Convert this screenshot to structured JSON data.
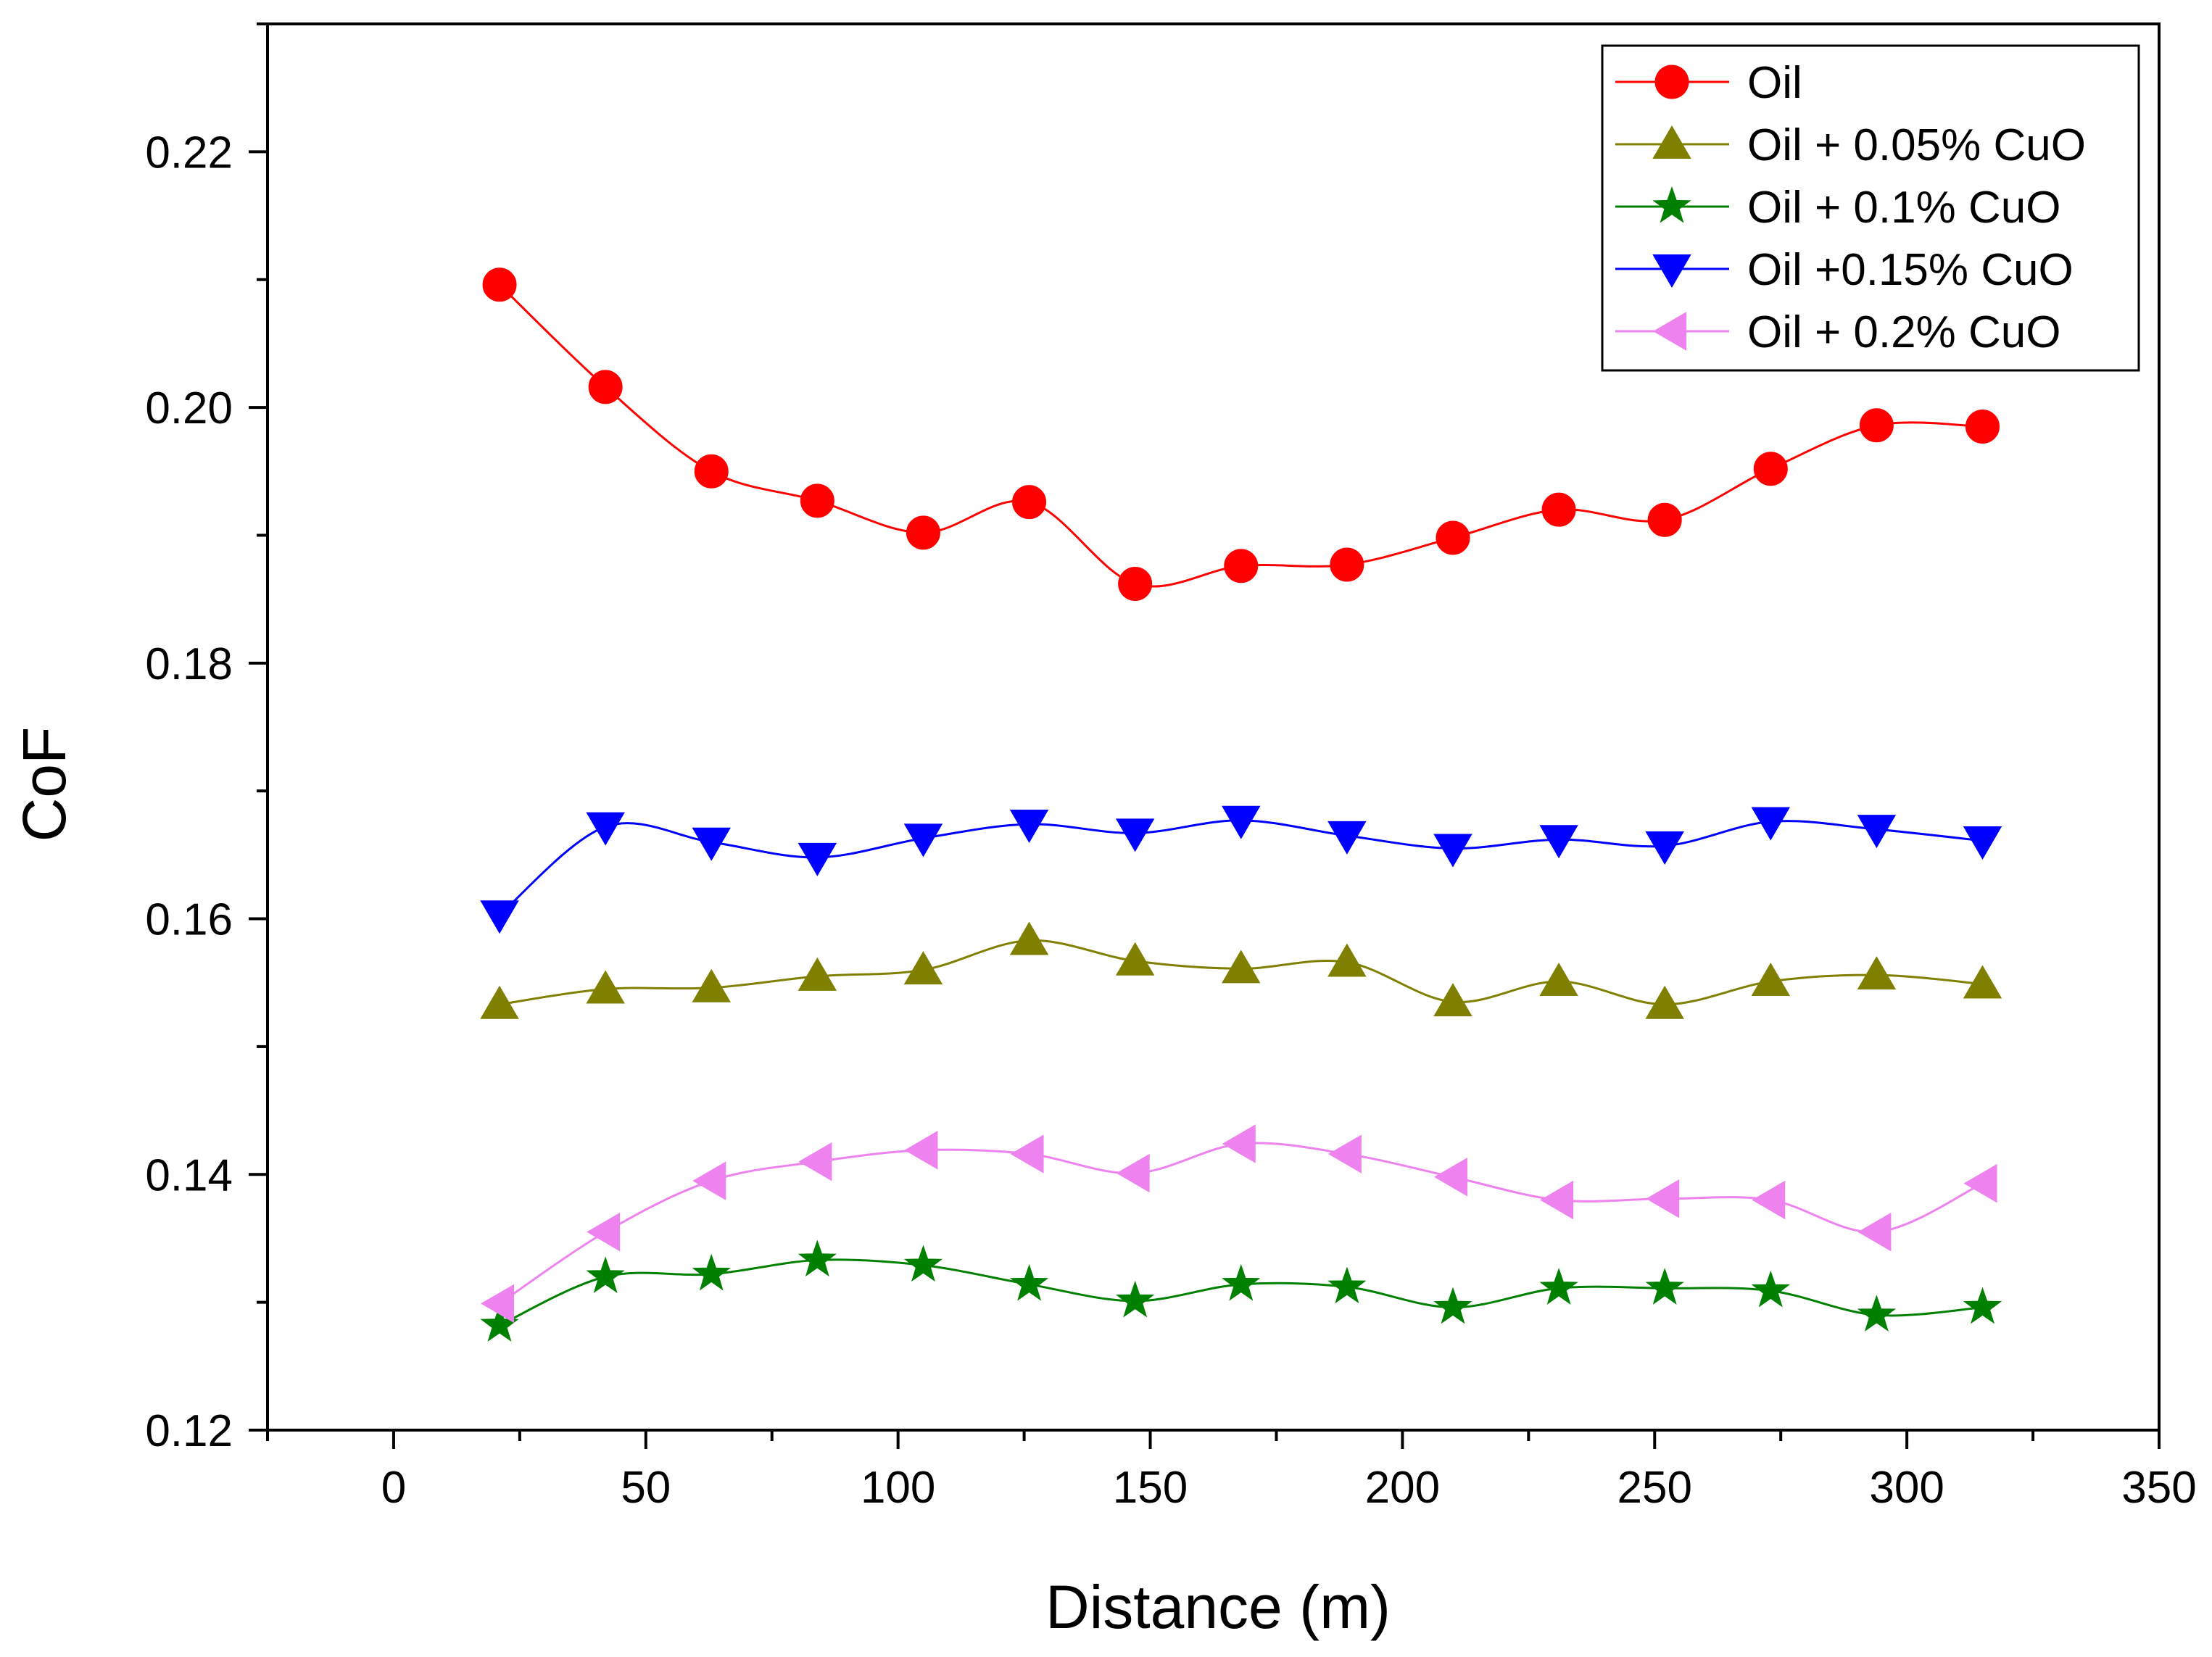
{
  "chart_data": {
    "type": "line",
    "title": "",
    "xlabel": "Distance (m)",
    "ylabel": "CoF",
    "xlim": [
      -25,
      350
    ],
    "ylim": [
      0.12,
      0.23
    ],
    "xticks": [
      0,
      50,
      100,
      150,
      200,
      250,
      300,
      350
    ],
    "yticks": [
      0.12,
      0.14,
      0.16,
      0.18,
      0.2,
      0.22
    ],
    "xtick_labels": [
      "0",
      "50",
      "100",
      "150",
      "200",
      "250",
      "300",
      "350"
    ],
    "ytick_labels": [
      "0.12",
      "0.14",
      "0.16",
      "0.18",
      "0.20",
      "0.22"
    ],
    "grid": false,
    "legend_position": "top-right",
    "x": [
      21,
      42,
      63,
      84,
      105,
      126,
      147,
      168,
      189,
      210,
      231,
      252,
      273,
      294,
      315
    ],
    "series": [
      {
        "name": "Oil",
        "color": "#ff0000",
        "marker": "circle",
        "values": [
          0.2096,
          0.2016,
          0.195,
          0.1927,
          0.1902,
          0.1926,
          0.1862,
          0.1876,
          0.1877,
          0.1898,
          0.192,
          0.1912,
          0.1952,
          0.1986,
          0.1985
        ]
      },
      {
        "name": "Oil + 0.05% CuO",
        "color": "#808000",
        "marker": "triangle-up",
        "values": [
          0.1533,
          0.1545,
          0.1546,
          0.1555,
          0.156,
          0.1583,
          0.1567,
          0.1561,
          0.1566,
          0.1535,
          0.1551,
          0.1533,
          0.1551,
          0.1556,
          0.1549
        ]
      },
      {
        "name": "Oil + 0.1% CuO",
        "color": "#008000",
        "marker": "star",
        "values": [
          0.1282,
          0.132,
          0.1322,
          0.1333,
          0.1329,
          0.1314,
          0.1301,
          0.1314,
          0.1312,
          0.1296,
          0.1311,
          0.1311,
          0.1309,
          0.129,
          0.1296
        ]
      },
      {
        "name": "Oil +0.15% CuO",
        "color": "#0000ff",
        "marker": "triangle-down",
        "values": [
          0.1603,
          0.1672,
          0.166,
          0.1648,
          0.1663,
          0.1674,
          0.1667,
          0.1677,
          0.1665,
          0.1655,
          0.1662,
          0.1657,
          0.1676,
          0.167,
          0.1661
        ]
      },
      {
        "name": "Oil + 0.2% CuO",
        "color": "#ee82ee",
        "marker": "triangle-left",
        "values": [
          0.1299,
          0.1355,
          0.1395,
          0.141,
          0.1419,
          0.1416,
          0.1401,
          0.1424,
          0.1416,
          0.1398,
          0.138,
          0.1381,
          0.138,
          0.1355,
          0.1393
        ]
      }
    ]
  }
}
